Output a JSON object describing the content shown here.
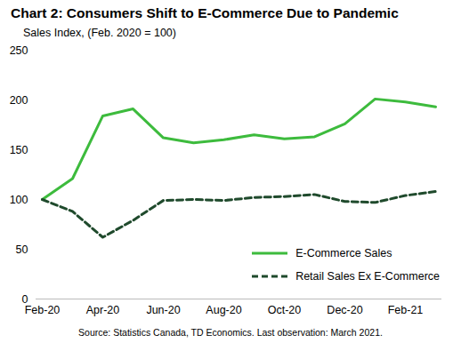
{
  "chart_data": {
    "type": "line",
    "title": "Chart 2: Consumers Shift to E-Commerce Due to Pandemic",
    "subtitle": "Sales Index, (Feb. 2020 = 100)",
    "caption": "Source: Statistics Canada, TD Economics. Last observation: March 2021.",
    "categories": [
      "Feb-20",
      null,
      "Apr-20",
      null,
      "Jun-20",
      null,
      "Aug-20",
      null,
      "Oct-20",
      null,
      "Dec-20",
      null,
      "Feb-21",
      null
    ],
    "series": [
      {
        "name": "E-Commerce Sales",
        "color": "#3dbb3d",
        "line_style": "solid",
        "values": [
          100,
          121,
          184,
          191,
          162,
          157,
          160,
          165,
          161,
          163,
          176,
          201,
          198,
          193
        ]
      },
      {
        "name": "Retail Sales Ex E-Commerce",
        "color": "#1f4a2c",
        "line_style": "dashed",
        "values": [
          100,
          88,
          62,
          79,
          99,
          100,
          99,
          102,
          103,
          105,
          98,
          97,
          104,
          108
        ]
      }
    ],
    "ylim": [
      0,
      250
    ],
    "yticks": [
      0,
      50,
      100,
      150,
      200,
      250
    ],
    "grid": false,
    "legend": "lower right"
  }
}
